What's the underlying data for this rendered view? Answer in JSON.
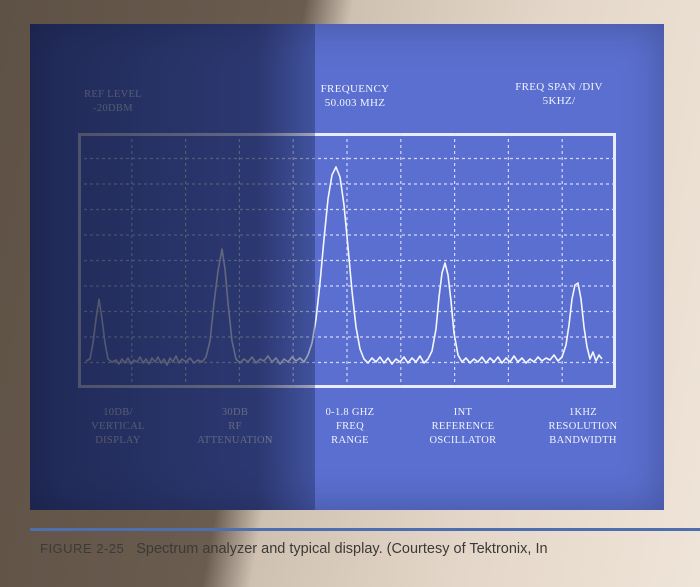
{
  "top_labels": {
    "ref_level": "REF LEVEL\n-20DBM",
    "frequency": "FREQUENCY\n50.003 MHZ",
    "freq_span": "FREQ SPAN /DIV\n5KHZ/"
  },
  "bottom_labels": {
    "vertical_display": "10DB/\nVERTICAL\nDISPLAY",
    "rf_attenuation": "30DB\nRF\nATTENUATION",
    "freq_range": "0-1.8 GHZ\nFREQ\nRANGE",
    "reference_oscillator": "INT\nREFERENCE\nOSCILLATOR",
    "resolution_bandwidth": "1KHZ\nRESOLUTION\nBANDWIDTH"
  },
  "caption": {
    "figure": "FIGURE 2-25",
    "text": "Spectrum analyzer and typical display. (Courtesy of Tektronix, In"
  },
  "colors": {
    "screen": "#5a6fcf",
    "trace": "#f4f6ff",
    "caption_rule": "#4d6fb0"
  }
}
